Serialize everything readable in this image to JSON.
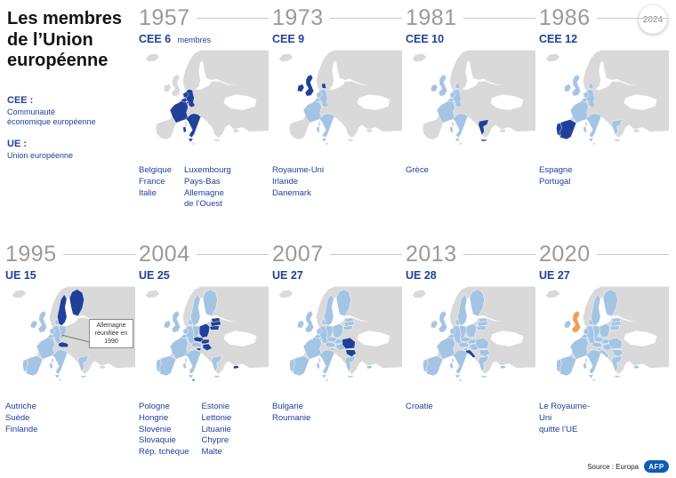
{
  "header": {
    "title": "Les membres\nde l’Union\neuropéenne",
    "badge": "2024"
  },
  "legend": {
    "items": [
      {
        "term": "CEE :",
        "definition": "Communauté\néconomique européenne"
      },
      {
        "term": "UE :",
        "definition": "Union européenne"
      }
    ]
  },
  "footer": {
    "source": "Source : Europa",
    "logo": "AFP"
  },
  "colors": {
    "land": "#d9d9d9",
    "member": "#a4c4e4",
    "new_member": "#21409a",
    "leaving": "#f49d4f",
    "year_text": "#9a9a9a",
    "accent_text": "#21409a"
  },
  "panels": [
    {
      "id": "1957",
      "year": "1957",
      "label": "CEE 6",
      "suffix": "membres",
      "new": [
        "BE",
        "FR",
        "IT",
        "LU",
        "NL",
        "DEW"
      ],
      "members": [],
      "leaving": [],
      "columns": [
        [
          "Belgique",
          "France",
          "Italie"
        ],
        [
          "Luxembourg",
          "Pays-Bas",
          "Allemagne\nde l’Ouest"
        ]
      ]
    },
    {
      "id": "1973",
      "year": "1973",
      "label": "CEE 9",
      "suffix": "",
      "new": [
        "GB",
        "IE",
        "DK"
      ],
      "members": [
        "BE",
        "FR",
        "IT",
        "LU",
        "NL",
        "DEW"
      ],
      "leaving": [],
      "columns": [
        [
          "Royaume-Uni",
          "Irlande",
          "Danemark"
        ]
      ]
    },
    {
      "id": "1981",
      "year": "1981",
      "label": "CEE 10",
      "suffix": "",
      "new": [
        "GR"
      ],
      "members": [
        "BE",
        "FR",
        "IT",
        "LU",
        "NL",
        "DEW",
        "GB",
        "IE",
        "DK"
      ],
      "leaving": [],
      "columns": [
        [
          "Grèce"
        ]
      ]
    },
    {
      "id": "1986",
      "year": "1986",
      "label": "CEE 12",
      "suffix": "",
      "new": [
        "ES",
        "PT"
      ],
      "members": [
        "BE",
        "FR",
        "IT",
        "LU",
        "NL",
        "DEW",
        "GB",
        "IE",
        "DK",
        "GR"
      ],
      "leaving": [],
      "columns": [
        [
          "Espagne",
          "Portugal"
        ]
      ]
    },
    {
      "id": "1995",
      "year": "1995",
      "label": "UE 15",
      "suffix": "",
      "new": [
        "AT",
        "SE",
        "FI"
      ],
      "members": [
        "BE",
        "FR",
        "IT",
        "LU",
        "NL",
        "DEW",
        "DEE",
        "GB",
        "IE",
        "DK",
        "GR",
        "ES",
        "PT"
      ],
      "leaving": [],
      "note": "Allemagne réunifiée en 1990",
      "columns": [
        [
          "Autriche",
          "Suède",
          "Finlande"
        ]
      ]
    },
    {
      "id": "2004",
      "year": "2004",
      "label": "UE 25",
      "suffix": "",
      "new": [
        "PL",
        "HU",
        "SI",
        "SK",
        "CZ",
        "EE",
        "LV",
        "LT",
        "CY",
        "MT"
      ],
      "members": [
        "BE",
        "FR",
        "IT",
        "LU",
        "NL",
        "DEW",
        "DEE",
        "GB",
        "IE",
        "DK",
        "GR",
        "ES",
        "PT",
        "AT",
        "SE",
        "FI"
      ],
      "leaving": [],
      "columns": [
        [
          "Pologne",
          "Hongrie",
          "Slovénie",
          "Slovaquie",
          "Rép. tchèque"
        ],
        [
          "Estonie",
          "Lettonie",
          "Lituanie",
          "Chypre",
          "Malte"
        ]
      ]
    },
    {
      "id": "2007",
      "year": "2007",
      "label": "UE 27",
      "suffix": "",
      "new": [
        "BG",
        "RO"
      ],
      "members": [
        "BE",
        "FR",
        "IT",
        "LU",
        "NL",
        "DEW",
        "DEE",
        "GB",
        "IE",
        "DK",
        "GR",
        "ES",
        "PT",
        "AT",
        "SE",
        "FI",
        "PL",
        "HU",
        "SI",
        "SK",
        "CZ",
        "EE",
        "LV",
        "LT",
        "CY",
        "MT"
      ],
      "leaving": [],
      "columns": [
        [
          "Bulgarie",
          "Roumanie"
        ]
      ]
    },
    {
      "id": "2013",
      "year": "2013",
      "label": "UE 28",
      "suffix": "",
      "new": [
        "HR"
      ],
      "members": [
        "BE",
        "FR",
        "IT",
        "LU",
        "NL",
        "DEW",
        "DEE",
        "GB",
        "IE",
        "DK",
        "GR",
        "ES",
        "PT",
        "AT",
        "SE",
        "FI",
        "PL",
        "HU",
        "SI",
        "SK",
        "CZ",
        "EE",
        "LV",
        "LT",
        "CY",
        "MT",
        "BG",
        "RO"
      ],
      "leaving": [],
      "columns": [
        [
          "Croatie"
        ]
      ]
    },
    {
      "id": "2020",
      "year": "2020",
      "label": "UE 27",
      "suffix": "",
      "new": [],
      "members": [
        "BE",
        "FR",
        "IT",
        "LU",
        "NL",
        "DEW",
        "DEE",
        "IE",
        "DK",
        "GR",
        "ES",
        "PT",
        "AT",
        "SE",
        "FI",
        "PL",
        "HU",
        "SI",
        "SK",
        "CZ",
        "EE",
        "LV",
        "LT",
        "CY",
        "MT",
        "BG",
        "RO",
        "HR"
      ],
      "leaving": [
        "GB"
      ],
      "columns": [
        [
          "Le Royaume-Uni\nquitte l’UE"
        ]
      ]
    }
  ]
}
